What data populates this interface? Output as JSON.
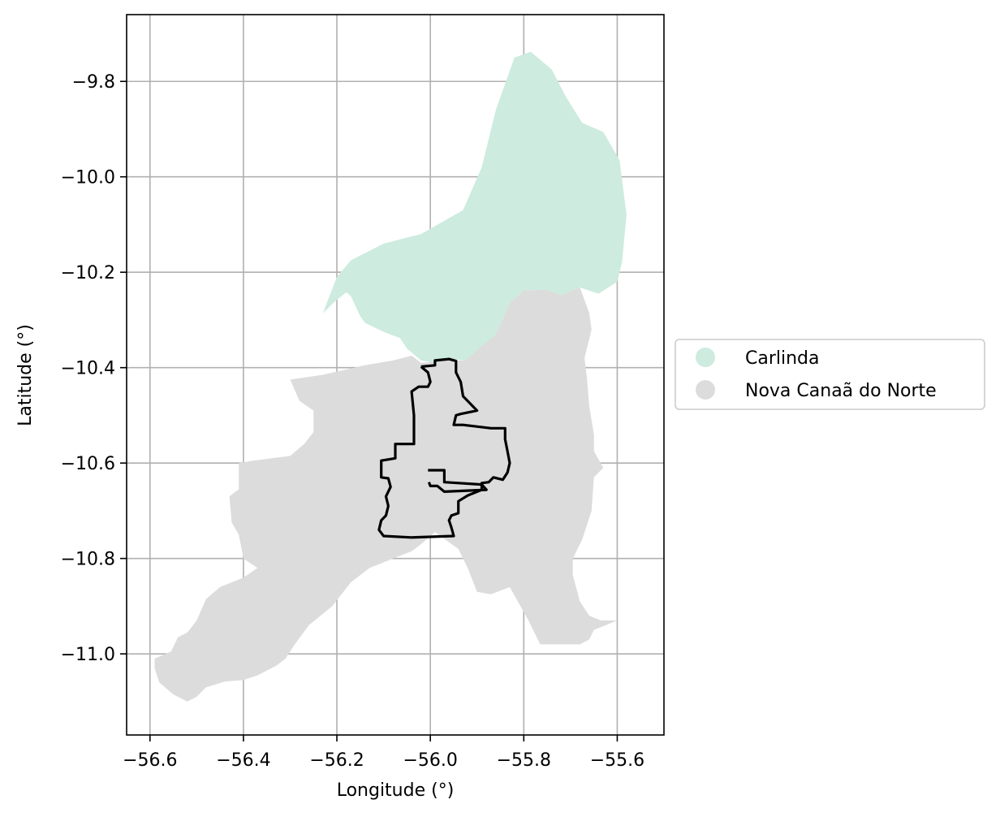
{
  "chart_data": {
    "type": "map",
    "title": "",
    "xlabel": "Longitude (°)",
    "ylabel": "Latitude (°)",
    "xlim": [
      -56.65,
      -55.5
    ],
    "ylim": [
      -11.17,
      -9.66
    ],
    "xticks": [
      -56.6,
      -56.4,
      -56.2,
      -56.0,
      -55.8,
      -55.6
    ],
    "xtick_labels": [
      "−56.6",
      "−56.4",
      "−56.2",
      "−56.0",
      "−55.8",
      "−55.6"
    ],
    "yticks": [
      -9.8,
      -10.0,
      -10.2,
      -10.4,
      -10.6,
      -10.8,
      -11.0
    ],
    "ytick_labels": [
      "−9.8",
      "−10.0",
      "−10.2",
      "−10.4",
      "−10.6",
      "−10.8",
      "−11.0"
    ],
    "grid": true,
    "legend_position": "center-right-outside",
    "legend": [
      {
        "label": "Carlinda",
        "color": "#cdebde"
      },
      {
        "label": "Nova Canaã do Norte",
        "color": "#dcdcdc"
      }
    ],
    "regions": [
      {
        "name": "Carlinda",
        "color": "#cdebde",
        "coords": [
          [
            -56.23,
            -10.286
          ],
          [
            -56.2,
            -10.21
          ],
          [
            -56.17,
            -10.175
          ],
          [
            -56.1,
            -10.14
          ],
          [
            -56.02,
            -10.12
          ],
          [
            -55.93,
            -10.07
          ],
          [
            -55.89,
            -9.98
          ],
          [
            -55.86,
            -9.86
          ],
          [
            -55.82,
            -9.75
          ],
          [
            -55.785,
            -9.738
          ],
          [
            -55.74,
            -9.775
          ],
          [
            -55.71,
            -9.832
          ],
          [
            -55.675,
            -9.887
          ],
          [
            -55.63,
            -9.906
          ],
          [
            -55.595,
            -9.965
          ],
          [
            -55.58,
            -10.08
          ],
          [
            -55.59,
            -10.18
          ],
          [
            -55.6,
            -10.22
          ],
          [
            -55.64,
            -10.245
          ],
          [
            -55.68,
            -10.232
          ],
          [
            -55.72,
            -10.248
          ],
          [
            -55.75,
            -10.237
          ],
          [
            -55.8,
            -10.238
          ],
          [
            -55.83,
            -10.265
          ],
          [
            -55.86,
            -10.33
          ],
          [
            -55.895,
            -10.365
          ],
          [
            -55.925,
            -10.385
          ],
          [
            -55.96,
            -10.382
          ],
          [
            -55.99,
            -10.39
          ],
          [
            -56.02,
            -10.385
          ],
          [
            -56.05,
            -10.36
          ],
          [
            -56.065,
            -10.338
          ],
          [
            -56.1,
            -10.325
          ],
          [
            -56.14,
            -10.306
          ],
          [
            -56.15,
            -10.292
          ],
          [
            -56.17,
            -10.25
          ],
          [
            -56.18,
            -10.242
          ],
          [
            -56.205,
            -10.262
          ],
          [
            -56.23,
            -10.286
          ]
        ]
      },
      {
        "name": "Nova Canaã do Norte",
        "color": "#dcdcdc",
        "coords": [
          [
            -56.59,
            -11.01
          ],
          [
            -56.555,
            -10.995
          ],
          [
            -56.54,
            -10.965
          ],
          [
            -56.52,
            -10.955
          ],
          [
            -56.5,
            -10.93
          ],
          [
            -56.48,
            -10.885
          ],
          [
            -56.45,
            -10.86
          ],
          [
            -56.4,
            -10.84
          ],
          [
            -56.37,
            -10.82
          ],
          [
            -56.4,
            -10.8
          ],
          [
            -56.41,
            -10.75
          ],
          [
            -56.425,
            -10.725
          ],
          [
            -56.43,
            -10.67
          ],
          [
            -56.41,
            -10.655
          ],
          [
            -56.41,
            -10.6
          ],
          [
            -56.38,
            -10.595
          ],
          [
            -56.3,
            -10.585
          ],
          [
            -56.27,
            -10.56
          ],
          [
            -56.25,
            -10.535
          ],
          [
            -56.25,
            -10.49
          ],
          [
            -56.28,
            -10.47
          ],
          [
            -56.3,
            -10.425
          ],
          [
            -56.23,
            -10.415
          ],
          [
            -56.14,
            -10.395
          ],
          [
            -56.08,
            -10.385
          ],
          [
            -56.04,
            -10.375
          ],
          [
            -56.02,
            -10.39
          ],
          [
            -55.96,
            -10.385
          ],
          [
            -55.925,
            -10.385
          ],
          [
            -55.86,
            -10.33
          ],
          [
            -55.83,
            -10.265
          ],
          [
            -55.8,
            -10.238
          ],
          [
            -55.75,
            -10.237
          ],
          [
            -55.72,
            -10.248
          ],
          [
            -55.68,
            -10.232
          ],
          [
            -55.66,
            -10.285
          ],
          [
            -55.655,
            -10.32
          ],
          [
            -55.67,
            -10.38
          ],
          [
            -55.665,
            -10.42
          ],
          [
            -55.66,
            -10.48
          ],
          [
            -55.65,
            -10.54
          ],
          [
            -55.65,
            -10.575
          ],
          [
            -55.63,
            -10.61
          ],
          [
            -55.65,
            -10.63
          ],
          [
            -55.655,
            -10.7
          ],
          [
            -55.675,
            -10.76
          ],
          [
            -55.695,
            -10.8
          ],
          [
            -55.695,
            -10.835
          ],
          [
            -55.68,
            -10.89
          ],
          [
            -55.66,
            -10.92
          ],
          [
            -55.635,
            -10.93
          ],
          [
            -55.6,
            -10.93
          ],
          [
            -55.65,
            -10.95
          ],
          [
            -55.66,
            -10.97
          ],
          [
            -55.68,
            -10.98
          ],
          [
            -55.72,
            -10.98
          ],
          [
            -55.765,
            -10.98
          ],
          [
            -55.79,
            -10.93
          ],
          [
            -55.83,
            -10.86
          ],
          [
            -55.87,
            -10.875
          ],
          [
            -55.9,
            -10.87
          ],
          [
            -55.92,
            -10.82
          ],
          [
            -55.94,
            -10.78
          ],
          [
            -55.99,
            -10.745
          ],
          [
            -56.02,
            -10.77
          ],
          [
            -56.04,
            -10.785
          ],
          [
            -56.08,
            -10.8
          ],
          [
            -56.13,
            -10.82
          ],
          [
            -56.17,
            -10.85
          ],
          [
            -56.21,
            -10.9
          ],
          [
            -56.26,
            -10.94
          ],
          [
            -56.29,
            -10.98
          ],
          [
            -56.31,
            -11.01
          ],
          [
            -56.33,
            -11.025
          ],
          [
            -56.37,
            -11.045
          ],
          [
            -56.4,
            -11.055
          ],
          [
            -56.44,
            -11.058
          ],
          [
            -56.48,
            -11.07
          ],
          [
            -56.5,
            -11.09
          ],
          [
            -56.52,
            -11.1
          ],
          [
            -56.55,
            -11.085
          ],
          [
            -56.58,
            -11.06
          ],
          [
            -56.59,
            -11.03
          ],
          [
            -56.59,
            -11.01
          ]
        ]
      }
    ],
    "boundary_lines": [
      {
        "name": "outlined-area",
        "color": "#000000",
        "coords": [
          [
            -56.02,
            -10.398
          ],
          [
            -55.99,
            -10.395
          ],
          [
            -55.99,
            -10.385
          ],
          [
            -55.96,
            -10.382
          ],
          [
            -55.945,
            -10.386
          ],
          [
            -55.945,
            -10.41
          ],
          [
            -55.935,
            -10.43
          ],
          [
            -55.93,
            -10.46
          ],
          [
            -55.915,
            -10.475
          ],
          [
            -55.9,
            -10.49
          ],
          [
            -55.935,
            -10.497
          ],
          [
            -55.945,
            -10.5
          ],
          [
            -55.95,
            -10.52
          ],
          [
            -55.93,
            -10.52
          ],
          [
            -55.87,
            -10.527
          ],
          [
            -55.84,
            -10.527
          ],
          [
            -55.84,
            -10.55
          ],
          [
            -55.835,
            -10.575
          ],
          [
            -55.83,
            -10.6
          ],
          [
            -55.835,
            -10.62
          ],
          [
            -55.845,
            -10.635
          ],
          [
            -55.865,
            -10.63
          ],
          [
            -55.875,
            -10.64
          ],
          [
            -55.89,
            -10.642
          ],
          [
            -55.89,
            -10.656
          ],
          [
            -55.92,
            -10.668
          ],
          [
            -55.94,
            -10.68
          ],
          [
            -55.94,
            -10.705
          ],
          [
            -55.955,
            -10.71
          ],
          [
            -55.96,
            -10.72
          ],
          [
            -55.955,
            -10.735
          ],
          [
            -55.95,
            -10.753
          ],
          [
            -56.04,
            -10.756
          ],
          [
            -56.1,
            -10.753
          ],
          [
            -56.11,
            -10.74
          ],
          [
            -56.105,
            -10.72
          ],
          [
            -56.095,
            -10.71
          ],
          [
            -56.09,
            -10.69
          ],
          [
            -56.095,
            -10.67
          ],
          [
            -56.085,
            -10.65
          ],
          [
            -56.09,
            -10.632
          ],
          [
            -56.105,
            -10.63
          ],
          [
            -56.105,
            -10.595
          ],
          [
            -56.075,
            -10.59
          ],
          [
            -56.075,
            -10.56
          ],
          [
            -56.035,
            -10.56
          ],
          [
            -56.035,
            -10.5
          ],
          [
            -56.04,
            -10.45
          ],
          [
            -56.025,
            -10.44
          ],
          [
            -56.005,
            -10.44
          ],
          [
            -56.0,
            -10.43
          ],
          [
            -56.005,
            -10.41
          ],
          [
            -56.02,
            -10.398
          ]
        ]
      },
      {
        "name": "outlined-area-inner",
        "color": "#000000",
        "coords": [
          [
            -56.005,
            -10.615
          ],
          [
            -55.97,
            -10.615
          ],
          [
            -55.97,
            -10.64
          ],
          [
            -55.89,
            -10.645
          ],
          [
            -55.88,
            -10.656
          ],
          [
            -55.97,
            -10.66
          ],
          [
            -55.985,
            -10.648
          ],
          [
            -56.0,
            -10.648
          ],
          [
            -56.003,
            -10.64
          ]
        ]
      }
    ]
  }
}
